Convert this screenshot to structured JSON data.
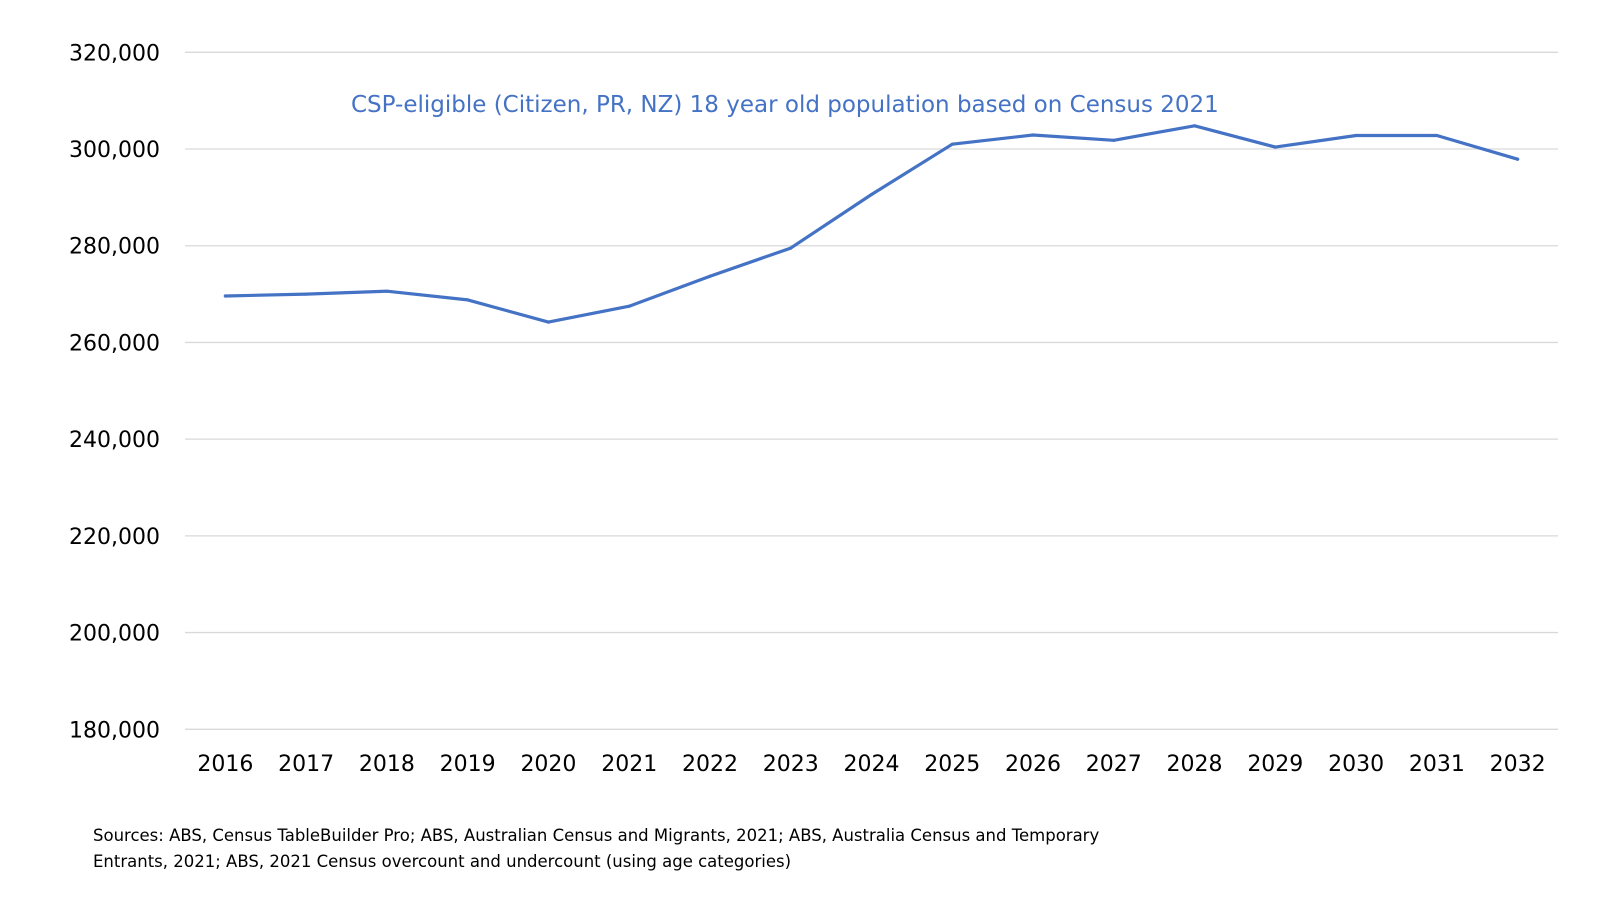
{
  "chart_data": {
    "type": "line",
    "title": "CSP-eligible (Citizen, PR, NZ) 18 year old population based on Census 2021",
    "xlabel": "",
    "ylabel": "",
    "categories": [
      "2016",
      "2017",
      "2018",
      "2019",
      "2020",
      "2021",
      "2022",
      "2023",
      "2024",
      "2025",
      "2026",
      "2027",
      "2028",
      "2029",
      "2030",
      "2031",
      "2032"
    ],
    "series": [
      {
        "name": "CSP-eligible 18 year old population",
        "color": "#4472c4",
        "values": [
          269600,
          270000,
          270600,
          268800,
          264200,
          267500,
          273700,
          279500,
          290600,
          301000,
          302900,
          301800,
          304800,
          300400,
          302800,
          302800,
          297900
        ]
      }
    ],
    "ylim": [
      180000,
      320000
    ],
    "yticks": [
      180000,
      200000,
      220000,
      240000,
      260000,
      280000,
      300000,
      320000
    ],
    "ytick_labels": [
      "180,000",
      "200,000",
      "220,000",
      "240,000",
      "260,000",
      "280,000",
      "300,000",
      "320,000"
    ],
    "grid": true,
    "legend": "none"
  },
  "footer": {
    "line1": "Sources: ABS, Census TableBuilder Pro; ABS, Australian Census and Migrants, 2021; ABS, Australia Census and Temporary",
    "line2": "Entrants, 2021; ABS, 2021 Census overcount and undercount (using age categories)"
  }
}
